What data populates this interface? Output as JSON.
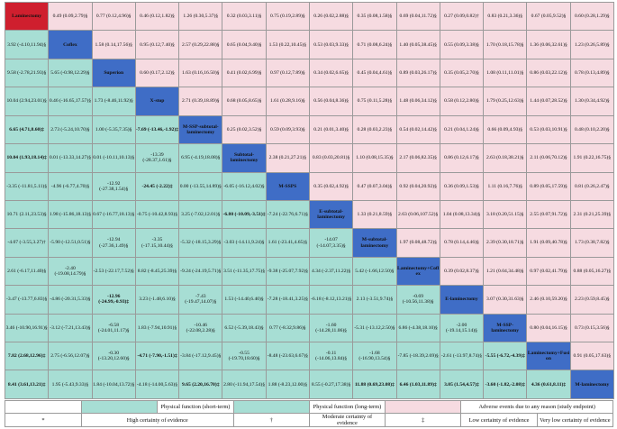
{
  "treatments": [
    "Laminectomy",
    "Coflex",
    "Superion",
    "X-stop",
    "M-SSP-subtotal-laminectomy",
    "Subtotal-laminectomy",
    "M-SSPS",
    "E-subtotal-laminectomy",
    "M-subtotal-laminectomy",
    "Laminectomy+Coflex",
    "E-laminectomy",
    "M-SSP-laminectomy",
    "Laminectomy+Fusion",
    "M-laminectomy"
  ],
  "matrix": [
    [
      "",
      "0.49 (0.09,2.79)§",
      "0.77 (0.12,4.96)§",
      "0.46 (0.12,1.82)§",
      "1.26 (0.30,5.37)§",
      "0.32 (0.03,3.11)§",
      "0.75 (0.19,2.89)§",
      "0.26 (0.02,2.88)§",
      "0.35 (0.08,1.58)§",
      "0.69 (0.04,11.72)§",
      "0.27 (0.09,0.82)†",
      "0.83 (0.21,3.36)§",
      "0.67 (0.05,9.52)§",
      "0.60 (0.28,1.29)§"
    ],
    [
      "3.92 (-4.10,11.94)§",
      "",
      "1.58 (0.14,17.56)§",
      "0.95 (0.12,7.40)§",
      "2.57 (0.29,22.88)§",
      "0.65 (0.04,9.40)§",
      "1.53 (0.22,10.45)§",
      "0.53 (0.03,9.33)§",
      "0.71 (0.08,6.24)§",
      "1.40 (0.05,38.45)§",
      "0.55 (0.09,3.38)§",
      "1.70 (0.18,15.78)§",
      "1.36 (0.06,32.61)§",
      "1.23 (0.26,5.89)§"
    ],
    [
      "9.58 (-2.78,21.93)§",
      "5.65 (-0.98,12.29)§",
      "",
      "0.60 (0.17,2.12)§",
      "1.63 (0.16,16.50)§",
      "0.41 (0.02,6.99)§",
      "0.97 (0.12,7.89)§",
      "0.34 (0.02,6.65)§",
      "0.45 (0.04,4.61)§",
      "0.89 (0.03,26.17)§",
      "0.35 (0.05,2.70)§",
      "1.08 (0.11,11.01)§",
      "0.86 (0.03,22.12)§",
      "0.78 (0.13,4.89)§"
    ],
    [
      "10.04 (2.94,23.01)§",
      "0.46 (-16.65,17.57)§",
      "1.73 (-8.46,11.92)§",
      "",
      "2.71 (0.39,18.89)§",
      "0.68 (0.05,8.65)§",
      "1.61 (0.28,9.16)§",
      "0.56 (0.04,8.36)§",
      "0.75 (0.11,5.28)§",
      "1.48 (0.06,34.12)§",
      "0.58 (0.12,2.80)§",
      "1.79 (0.25,12.63)§",
      "1.44 (0.07,28.52)§",
      "1.30 (0.34,4.92)§"
    ],
    [
      "6.65 (4.71,8.60)‡",
      "2.73 (-5.24,10.70)§",
      "1.00 (-5.35,7.35)§",
      "-7.69 (-13.46,-1.92)‡",
      "",
      "0.25 (0.02,3.52)§",
      "0.59 (0.09,3.93)§",
      "0.21 (0.01,3.40)§",
      "0.28 (0.03,2.23)§",
      "0.54 (0.02,14.42)§",
      "0.21 (0.04,1.24)§",
      "0.66 (0.09,4.93)§",
      "0.53 (0.03,10.91)§",
      "0.48 (0.10,2.20)§"
    ],
    [
      "10.04 (1.93,18.14)‡",
      "0.01 (-13.33,14.27)§",
      "0.01 (-10.11,10.13)§",
      "-13.39 (-28.37,1.61)§",
      "6.95 (-4.19,18.08)§",
      "",
      "2.38 (0.21,27.21)§",
      "0.83 (0.03,20.81)§",
      "1.10 (0.08,15.35)§",
      "2.17 (0.06,82.35)§",
      "0.86 (0.12,6.17)§",
      "2.63 (0.18,38.21)§",
      "2.11 (0.06,70.12)§",
      "1.91 (0.22,16.75)§"
    ],
    [
      "-3.35 (-11.81,5.11)§",
      "-4.96 (-6.77,4.70)§",
      "-12.92 (-27.38,1.54)§",
      "-24.45 (-2.22)‡",
      "0.00 (-13.55,14.89)§",
      "-6.05 (-16.12,4.02)§",
      "",
      "0.35 (0.02,4.92)§",
      "0.47 (0.07,3.04)§",
      "0.92 (0.04,20.92)§",
      "0.36 (0.09,1.53)§",
      "1.11 (0.16,7.76)§",
      "0.89 (0.05,17.59)§",
      "0.81 (0.26,2.47)§"
    ],
    [
      "10.71 (2.11,23.53)§",
      "1.98 (-15.86,18.13)§",
      "0.67 (-16.77,18.13)§",
      "-0.75 (-10.42,8.93)§",
      "3.25 (-7.02,12.01)§",
      "-6.80 (-10.09,-3.51)‡",
      "-7.24 (-22.76,6.71)§",
      "",
      "1.33 (0.21,8.59)§",
      "2.63 (0.06,107.52)§",
      "1.04 (0.08,13.34)§",
      "3.18 (0.20,51.15)§",
      "2.55 (0.07,91.72)§",
      "2.31 (0.21,25.39)§"
    ],
    [
      "-4.07 (-3.55,3.27)†",
      "-5.90 (-12.51,0.51)§",
      "-12.94 (-27.36,1.49)§",
      "-3.35 (-17.15,10.44)§",
      "-5.32 (-18.15,3.29)§",
      "-3.03 (-14.11,9.24)§",
      "1.61 (-23.41,4.65)§",
      "-14.07 (-14.07,3.35)§",
      "",
      "1.97 (0.08,48.72)§",
      "0.78 (0.14,4.46)§",
      "2.39 (0.30,18.71)§",
      "1.91 (0.09,40.78)§",
      "1.73 (0.38,7.82)§"
    ],
    [
      "2.61 (-6.17,11.40)§",
      "-2.40 (-19.08,14.79)§",
      "-2.53 (-22.17,7.52)§",
      "8.82 (-8.45,25.39)§",
      "-9.24 (-24.19,5.71)§",
      "3.51 (-11.35,17.75)§",
      "-9.38 (-25.07,7.92)§",
      "4.34 (-2.37,11.22)§",
      "5.42 (-1.66,12.50)§",
      "",
      "0.39 (0.02,8.37)§",
      "1.21 (0.04,34.48)§",
      "0.97 (0.02,41.79)§",
      "0.88 (0.05,16.27)§"
    ],
    [
      "-3.47 (-13.77,6.83)§",
      "-4.86 (-20.31,5.33)§",
      "-12.96 (-24.99,-0.93)‡",
      "3.23 (-1.48,6.10)§",
      "-7.43 (-19.47,14.07)§",
      "1.53 (-14.40,6.40)§",
      "-7.28 (-18.41,3.25)§",
      "-6.18 (-8.12,13.21)§",
      "2.13 (-3.51,9.74)§",
      "-0.69 (-10.56,11.38)§",
      "",
      "3.07 (0.30,31.63)§",
      "2.46 (0.10,59.20)§",
      "2.23 (0.59,8.45)§"
    ],
    [
      "3.46 (-10.90,16.91)§",
      "-3.12 (-7.21,13.43)§",
      "-6.58 (-24.01,11.17)§",
      "1.83 (-7.94,10.91)§",
      "-10.46 (-22.08,2.28)§",
      "6.52 (-5.39,18.43)§",
      "0.77 (-8.32,9.86)§",
      "-1.60 (-14.28,11.06)§",
      "-5.31 (-13.12,2.50)§",
      "6.86 (-4.38,18.10)§",
      "-2.00 (-19.14,15.14)§",
      "",
      "0.80 (0.04,16.15)§",
      "0.73 (0.15,3.56)§"
    ],
    [
      "7.82 (2.68,12.96)‡",
      "2.75 (-6.56,12.07)§",
      "-0.30 (-13.20,12.60)§",
      "-4.71 (-7.90,-1.51)‡",
      "-3.84 (-17.12,9.45)§",
      "-0.55 (-19.70,18.60)§",
      "-8.48 (-23.63,6.67)§",
      "-0.11 (-14.06,13.84)§",
      "-1.68 (-16.90,13.54)§",
      "-7.85 (-18.39,2.69)§",
      "-2.61 (-13.97,8.74)§",
      "-5.55 (-6.72,-4.39)‡",
      "",
      "0.91 (0.05,17.63)§"
    ],
    [
      "8.41 (3.61,13.21)‡",
      "1.95 (-5.43,9.33)§",
      "1.84 (-10.04,13.72)§",
      "-4.18 (-14.00,5.63)§",
      "9.65 (2.20,16.70)‡",
      "2.80 (-11.94,17.54)§",
      "1.88 (-8.23,12.00)§",
      "8.55 (-0.27,17.38)§",
      "11.88 (0.69,23.08)‡",
      "6.46 (1.03,11.89)‡",
      "3.05 (1.54,4.57)‡",
      "-3.60 (-1.82,-2.08)‡",
      "4.36 (0.61,8.11)‡",
      ""
    ]
  ],
  "legend": {
    "row1": [
      "Physical function (short-term)",
      "Physical function (long-term)",
      "Adverse events due to any reason (study endpoint)"
    ],
    "row2": [
      "High certainty of evidence",
      "Moderate certainty of evidence",
      "Low certainty of evidence",
      "Very low certainty of evidence"
    ],
    "row2_symbols": [
      "*",
      "†",
      "‡",
      "§"
    ]
  },
  "colors": {
    "lower_triangle": "#a7ded4",
    "upper_triangle": "#f6dbe1",
    "diagonal": "#3f6dc6",
    "first_diagonal": "#cf1f2e"
  }
}
